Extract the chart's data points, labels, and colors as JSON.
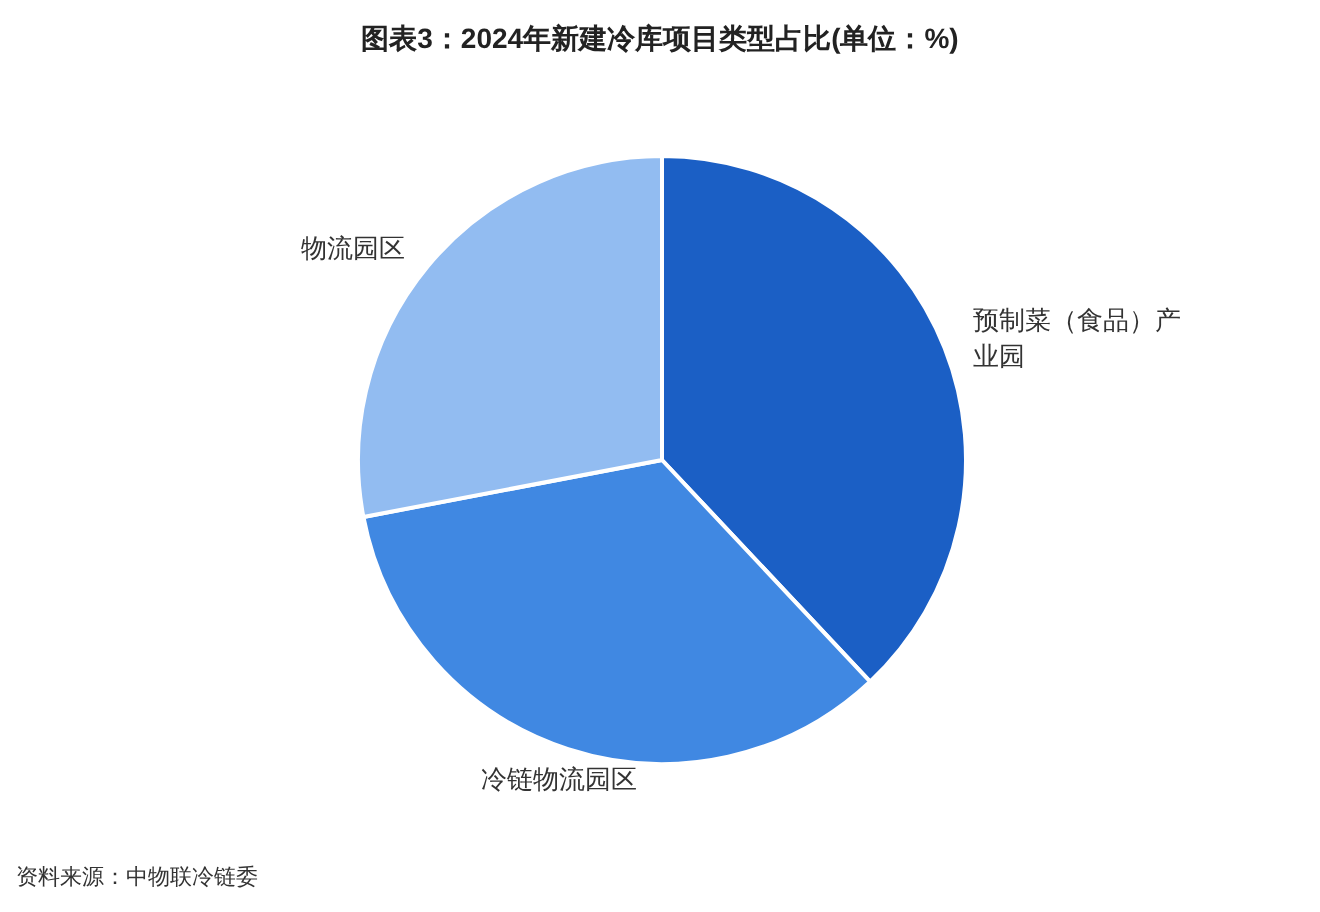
{
  "chart_data": {
    "type": "pie",
    "title": "图表3：2024年新建冷库项目类型占比(单位：%)",
    "categories": [
      "预制菜（食品）产业园",
      "冷链物流园区",
      "物流园区"
    ],
    "values": [
      38,
      34,
      28
    ],
    "colors": [
      "#1b5fc5",
      "#4088e2",
      "#92bcf1"
    ],
    "annotations": [
      "资料来源：中物联冷链委"
    ]
  }
}
